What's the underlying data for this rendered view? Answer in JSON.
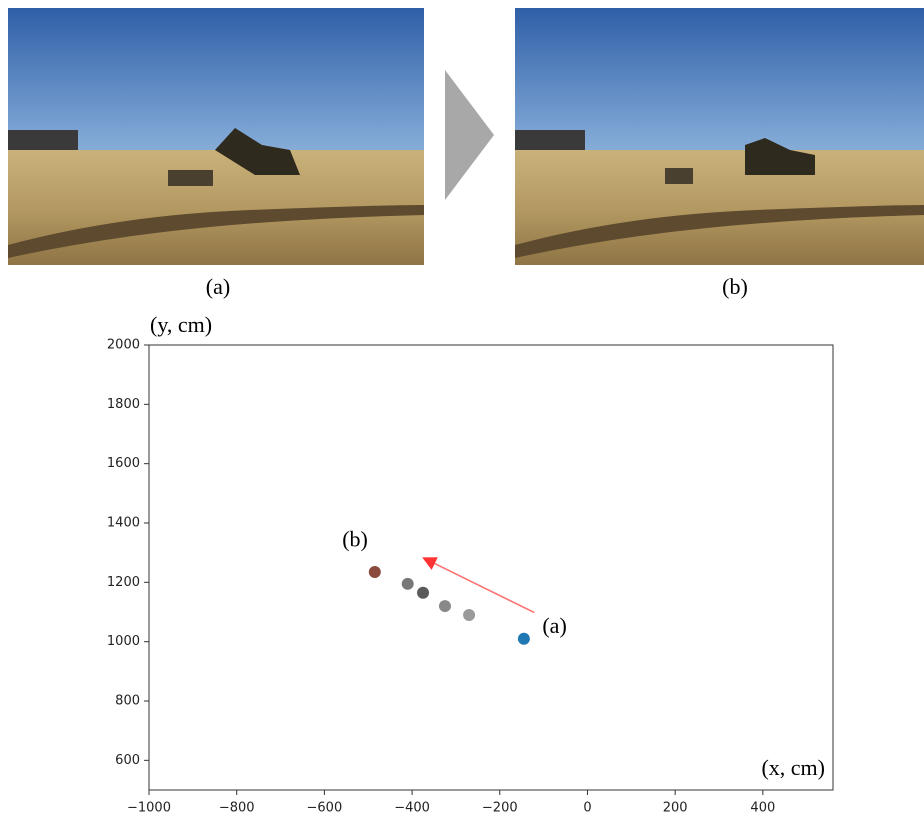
{
  "panels": [
    {
      "label": "(a)"
    },
    {
      "label": "(b)"
    }
  ],
  "chart_data": {
    "type": "scatter",
    "x_label": "(x, cm)",
    "y_label": "(y, cm)",
    "x": [
      -145,
      -270,
      -325,
      -375,
      -410,
      -485
    ],
    "values": [
      1010,
      1090,
      1120,
      1165,
      1195,
      1235
    ],
    "colors": [
      "#1f77b4",
      "#9a9a9a",
      "#888888",
      "#5a5a5a",
      "#777777",
      "#8c4a3e"
    ],
    "xlim": [
      -1000,
      560
    ],
    "ylim": [
      500,
      2000
    ],
    "xticks": [
      {
        "value": -1000,
        "label": "−1000"
      },
      {
        "value": -800,
        "label": "−800"
      },
      {
        "value": -600,
        "label": "−600"
      },
      {
        "value": -400,
        "label": "−400"
      },
      {
        "value": -200,
        "label": "−200"
      },
      0,
      200,
      400
    ],
    "yticks": [
      600,
      800,
      1000,
      1200,
      1400,
      1600,
      1800,
      2000
    ],
    "arrow": {
      "x": [
        -121,
        -377
      ],
      "y": [
        1098,
        1284
      ],
      "color": "#ff3333"
    },
    "annotations": [
      {
        "text": "(a)",
        "x": -75,
        "y": 1030
      },
      {
        "text": "(b)",
        "x": -530,
        "y": 1320
      }
    ]
  }
}
